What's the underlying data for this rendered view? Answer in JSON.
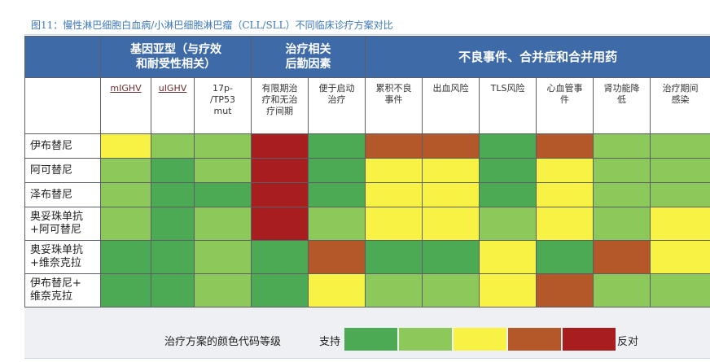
{
  "title": "图11：慢性淋巴细胞白血病/小淋巴细胞淋巴瘤（CLL/SLL）不同临床诊疗方案对比",
  "groups": {
    "genetic": [
      "基因亚型（与疗效",
      "和耐受性相关）"
    ],
    "logistics": [
      "治疗相关",
      "后勤因素"
    ],
    "adverse": "不良事件、合并症和合并用药"
  },
  "subheaders": [
    [
      "mIGHV"
    ],
    [
      "uIGHV"
    ],
    [
      "17p-",
      "/TP53",
      "mut"
    ],
    [
      "有限期治",
      "疗和无治",
      "疗间期"
    ],
    [
      "便于启动",
      "治疗"
    ],
    [
      "累积不良",
      "事件"
    ],
    [
      "出血风险"
    ],
    [
      "TLS风险"
    ],
    [
      "心血管事",
      "件"
    ],
    [
      "肾功能降",
      "低"
    ],
    [
      "治疗期间",
      "感染"
    ]
  ],
  "rows": [
    {
      "label": [
        "伊布替尼"
      ],
      "cells": [
        "ye",
        "lg",
        "lg",
        "rd",
        "dg",
        "or",
        "or",
        "dg",
        "or",
        "lg",
        "lg"
      ]
    },
    {
      "label": [
        "阿可替尼"
      ],
      "cells": [
        "lg",
        "dg",
        "lg",
        "rd",
        "dg",
        "ye",
        "ye",
        "dg",
        "ye",
        "lg",
        "lg"
      ]
    },
    {
      "label": [
        "泽布替尼"
      ],
      "cells": [
        "lg",
        "dg",
        "dg",
        "rd",
        "dg",
        "ye",
        "ye",
        "dg",
        "ye",
        "lg",
        "lg"
      ]
    },
    {
      "label": [
        "奥妥珠单抗",
        "+阿可替尼"
      ],
      "cells": [
        "lg",
        "dg",
        "lg",
        "rd",
        "lg",
        "ye",
        "ye",
        "lg",
        "ye",
        "lg",
        "ye"
      ]
    },
    {
      "label": [
        "奥妥珠单抗",
        "+维奈克拉"
      ],
      "cells": [
        "dg",
        "dg",
        "lg",
        "dg",
        "or",
        "dg",
        "dg",
        "ye",
        "dg",
        "or",
        "ye"
      ]
    },
    {
      "label": [
        "伊布替尼+",
        "维奈克拉"
      ],
      "cells": [
        "dg",
        "dg",
        "lg",
        "dg",
        "ye",
        "lg",
        "lg",
        "ye",
        "or",
        "lg",
        "lg"
      ]
    }
  ],
  "legend": {
    "label": "治疗方案的颜色代码等级",
    "start": "支持",
    "end": "反对",
    "scale": [
      "dg",
      "lg",
      "ye",
      "or",
      "rd"
    ]
  },
  "colors": {
    "dg": "#4caa54",
    "lg": "#8dc95a",
    "ye": "#f7f243",
    "or": "#b4582a",
    "rd": "#a81e1e",
    "header": "#3e6aa8"
  }
}
